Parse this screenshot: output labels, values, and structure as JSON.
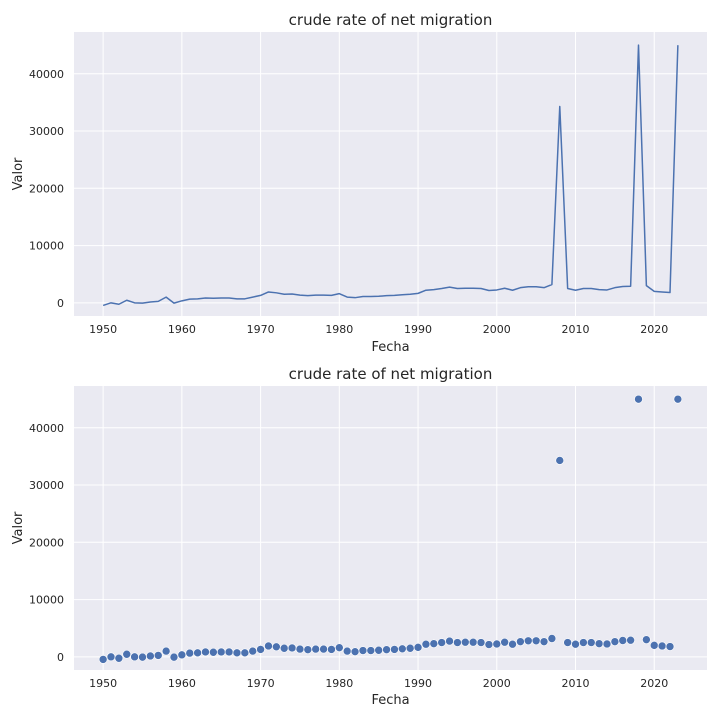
{
  "chart_data": [
    {
      "type": "line",
      "title": "crude rate of net migration",
      "xlabel": "Fecha",
      "ylabel": "Valor",
      "xlim": [
        1946.3,
        2026.7
      ],
      "ylim": [
        -2300,
        47300
      ],
      "xticks": [
        1950,
        1960,
        1970,
        1980,
        1990,
        2000,
        2010,
        2020
      ],
      "yticks": [
        0,
        10000,
        20000,
        30000,
        40000
      ],
      "grid": true,
      "series": [
        {
          "x": [
            1950,
            1951,
            1952,
            1953,
            1954,
            1955,
            1956,
            1957,
            1958,
            1959,
            1960,
            1961,
            1962,
            1963,
            1964,
            1965,
            1966,
            1967,
            1968,
            1969,
            1970,
            1971,
            1972,
            1973,
            1974,
            1975,
            1976,
            1977,
            1978,
            1979,
            1980,
            1981,
            1982,
            1983,
            1984,
            1985,
            1986,
            1987,
            1988,
            1989,
            1990,
            1991,
            1992,
            1993,
            1994,
            1995,
            1996,
            1997,
            1998,
            1999,
            2000,
            2001,
            2002,
            2003,
            2004,
            2005,
            2006,
            2007,
            2008,
            2009,
            2010,
            2011,
            2012,
            2013,
            2014,
            2015,
            2016,
            2017,
            2018,
            2019,
            2020,
            2021,
            2022,
            2023
          ],
          "y": [
            -450,
            0,
            -250,
            450,
            0,
            -50,
            150,
            250,
            1000,
            -50,
            350,
            650,
            700,
            850,
            800,
            850,
            850,
            700,
            700,
            1000,
            1300,
            1900,
            1750,
            1500,
            1550,
            1350,
            1250,
            1350,
            1350,
            1300,
            1600,
            1000,
            900,
            1100,
            1100,
            1150,
            1250,
            1300,
            1400,
            1500,
            1650,
            2200,
            2300,
            2500,
            2750,
            2500,
            2550,
            2550,
            2500,
            2150,
            2250,
            2550,
            2200,
            2650,
            2800,
            2800,
            2650,
            3200,
            34300,
            2500,
            2200,
            2500,
            2500,
            2300,
            2250,
            2650,
            2850,
            2900,
            45000,
            3000,
            2000,
            1900,
            1800,
            45000
          ]
        }
      ]
    },
    {
      "type": "scatter",
      "title": "crude rate of net migration",
      "xlabel": "Fecha",
      "ylabel": "Valor",
      "xlim": [
        1946.3,
        2026.7
      ],
      "ylim": [
        -2300,
        47300
      ],
      "xticks": [
        1950,
        1960,
        1970,
        1980,
        1990,
        2000,
        2010,
        2020
      ],
      "yticks": [
        0,
        10000,
        20000,
        30000,
        40000
      ],
      "grid": true,
      "series": [
        {
          "x": [
            1950,
            1951,
            1952,
            1953,
            1954,
            1955,
            1956,
            1957,
            1958,
            1959,
            1960,
            1961,
            1962,
            1963,
            1964,
            1965,
            1966,
            1967,
            1968,
            1969,
            1970,
            1971,
            1972,
            1973,
            1974,
            1975,
            1976,
            1977,
            1978,
            1979,
            1980,
            1981,
            1982,
            1983,
            1984,
            1985,
            1986,
            1987,
            1988,
            1989,
            1990,
            1991,
            1992,
            1993,
            1994,
            1995,
            1996,
            1997,
            1998,
            1999,
            2000,
            2001,
            2002,
            2003,
            2004,
            2005,
            2006,
            2007,
            2008,
            2009,
            2010,
            2011,
            2012,
            2013,
            2014,
            2015,
            2016,
            2017,
            2018,
            2019,
            2020,
            2021,
            2022,
            2023
          ],
          "y": [
            -450,
            0,
            -250,
            450,
            0,
            -50,
            150,
            250,
            1000,
            -50,
            350,
            650,
            700,
            850,
            800,
            850,
            850,
            700,
            700,
            1000,
            1300,
            1900,
            1750,
            1500,
            1550,
            1350,
            1250,
            1350,
            1350,
            1300,
            1600,
            1000,
            900,
            1100,
            1100,
            1150,
            1250,
            1300,
            1400,
            1500,
            1650,
            2200,
            2300,
            2500,
            2750,
            2500,
            2550,
            2550,
            2500,
            2150,
            2250,
            2550,
            2200,
            2650,
            2800,
            2800,
            2650,
            3200,
            34300,
            2500,
            2200,
            2500,
            2500,
            2300,
            2250,
            2650,
            2850,
            2900,
            45000,
            3000,
            2000,
            1900,
            1800,
            45000
          ]
        }
      ]
    }
  ]
}
